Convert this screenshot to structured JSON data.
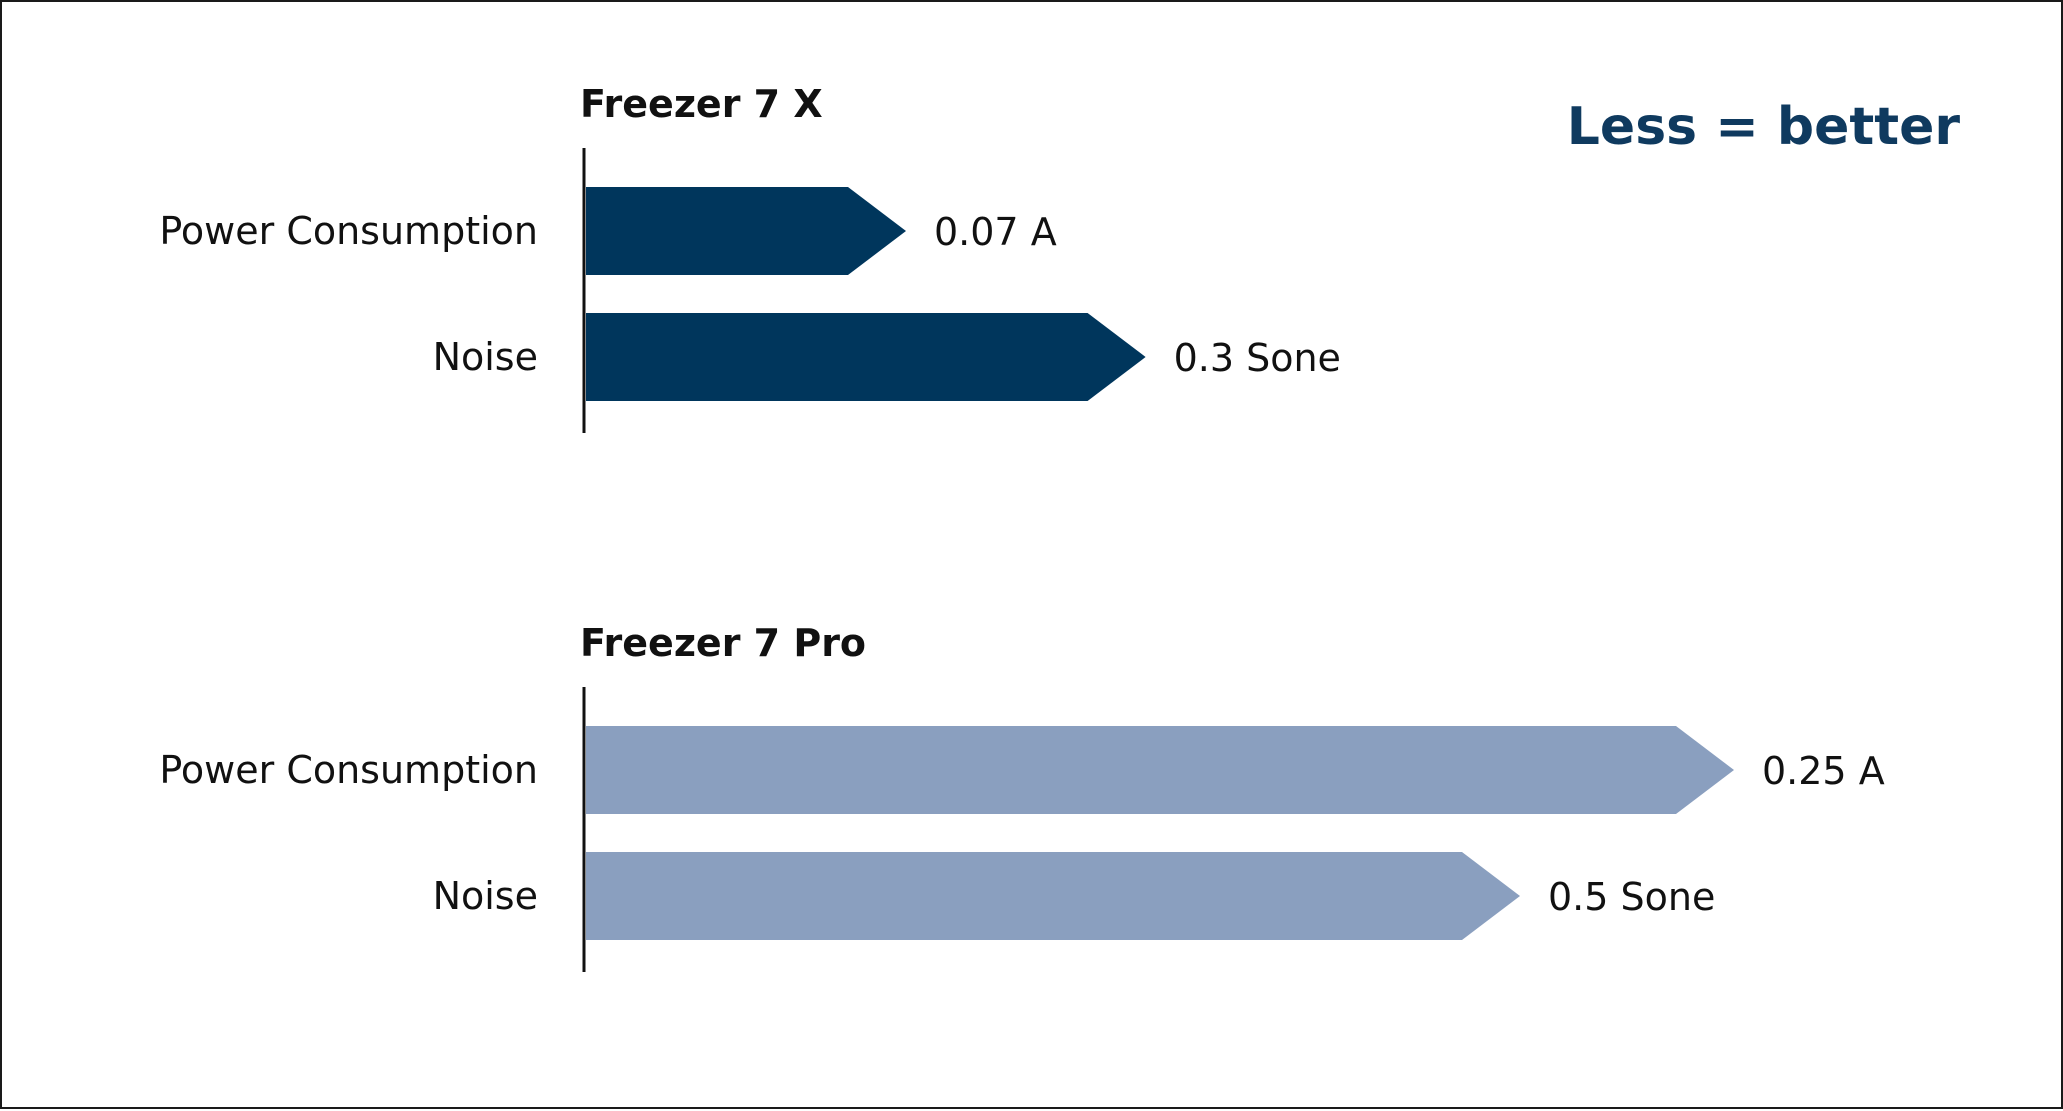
{
  "chart_data": {
    "type": "bar",
    "orientation": "horizontal",
    "note": "Less = better",
    "colors": {
      "note": "#0f3a5f",
      "axis": "#111111",
      "series": [
        "#00365c",
        "#8a9fbf"
      ]
    },
    "series": [
      {
        "name": "Freezer 7 X",
        "categories": [
          "Power Consumption",
          "Noise"
        ],
        "values": [
          0.07,
          0.3
        ],
        "value_labels": [
          "0.07 A",
          "0.3 Sone"
        ]
      },
      {
        "name": "Freezer 7 Pro",
        "categories": [
          "Power Consumption",
          "Noise"
        ],
        "values": [
          0.25,
          0.5
        ],
        "value_labels": [
          "0.25 A",
          "0.5 Sone"
        ]
      }
    ]
  }
}
